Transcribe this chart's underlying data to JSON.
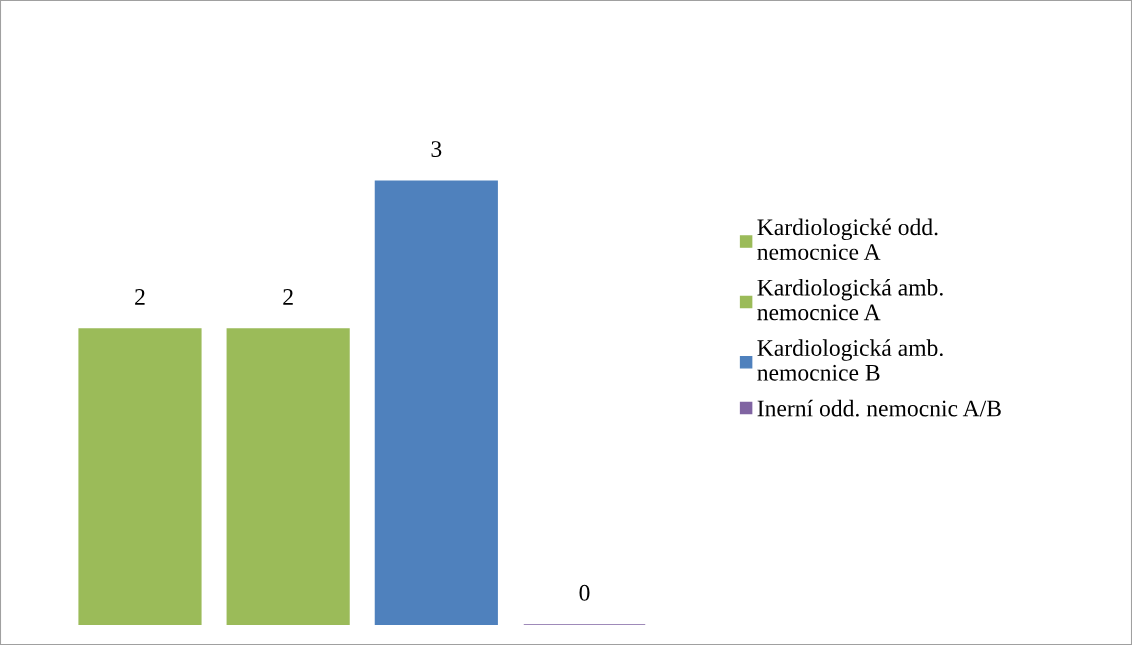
{
  "chart_data": {
    "type": "bar",
    "categories": [
      null
    ],
    "series": [
      {
        "name": "Kardiologické odd.\nnemocnice A",
        "color": "#9bbb59",
        "values": [
          2
        ]
      },
      {
        "name": "Kardiologická amb.\nnemocnice A",
        "color": "#9bbb59",
        "values": [
          2
        ]
      },
      {
        "name": "Kardiologická amb.\nnemocnice B",
        "color": "#4f81bd",
        "values": [
          3
        ]
      },
      {
        "name": "Inerní odd. nemocnic A/B",
        "color": "#8064a2",
        "values": [
          0
        ]
      }
    ],
    "data_labels": true,
    "legend": "right",
    "grid": false
  }
}
